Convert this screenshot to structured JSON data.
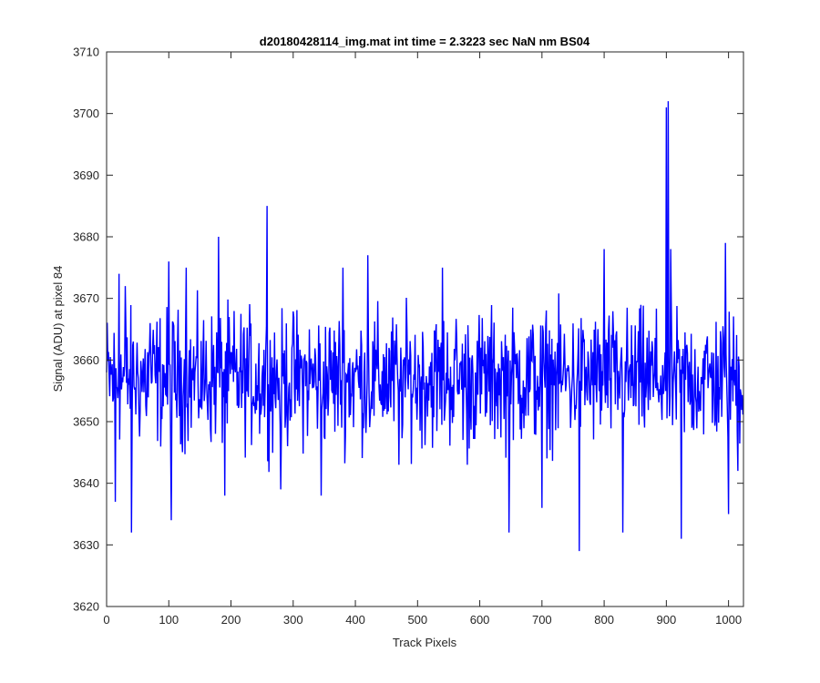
{
  "chart_data": {
    "type": "line",
    "title": "d20180428114_img.mat int time = 2.3223 sec  NaN nm BS04",
    "xlabel": "Track Pixels",
    "ylabel": "Signal (ADU) at pixel 84",
    "xlim": [
      0,
      1024
    ],
    "ylim": [
      3620,
      3710
    ],
    "xticks": [
      0,
      100,
      200,
      300,
      400,
      500,
      600,
      700,
      800,
      900,
      1000
    ],
    "yticks": [
      3620,
      3630,
      3640,
      3650,
      3660,
      3670,
      3680,
      3690,
      3700,
      3710
    ],
    "grid": false,
    "legend": "none",
    "series": [
      {
        "color": "#0000ff",
        "n_points": 1024,
        "mean": 3657,
        "noise_range": [
          3641,
          3673
        ],
        "annotated_points": [
          {
            "x": 14,
            "y": 3637
          },
          {
            "x": 20,
            "y": 3674
          },
          {
            "x": 30,
            "y": 3672
          },
          {
            "x": 40,
            "y": 3632
          },
          {
            "x": 70,
            "y": 3666
          },
          {
            "x": 100,
            "y": 3676
          },
          {
            "x": 104,
            "y": 3634
          },
          {
            "x": 128,
            "y": 3675
          },
          {
            "x": 180,
            "y": 3680
          },
          {
            "x": 190,
            "y": 3638
          },
          {
            "x": 258,
            "y": 3685
          },
          {
            "x": 280,
            "y": 3639
          },
          {
            "x": 345,
            "y": 3638
          },
          {
            "x": 380,
            "y": 3675
          },
          {
            "x": 420,
            "y": 3677
          },
          {
            "x": 470,
            "y": 3643
          },
          {
            "x": 540,
            "y": 3675
          },
          {
            "x": 580,
            "y": 3643
          },
          {
            "x": 647,
            "y": 3632
          },
          {
            "x": 700,
            "y": 3636
          },
          {
            "x": 760,
            "y": 3629
          },
          {
            "x": 800,
            "y": 3678
          },
          {
            "x": 830,
            "y": 3632
          },
          {
            "x": 900,
            "y": 3701
          },
          {
            "x": 903,
            "y": 3702
          },
          {
            "x": 907,
            "y": 3678
          },
          {
            "x": 924,
            "y": 3631
          },
          {
            "x": 995,
            "y": 3679
          },
          {
            "x": 1000,
            "y": 3635
          },
          {
            "x": 1015,
            "y": 3642
          }
        ]
      }
    ]
  }
}
